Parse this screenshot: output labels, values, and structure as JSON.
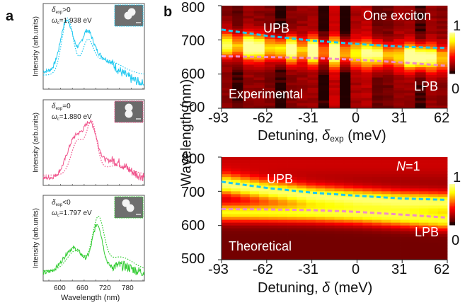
{
  "panel_a": {
    "letter": "a",
    "ylabel": "Intensity (arb.units)",
    "xlabel": "Wavelength (nm)",
    "xticks": [
      "600",
      "660",
      "720",
      "780"
    ],
    "spectra": [
      {
        "delta_label_main": "δ",
        "delta_sub": "exp",
        "delta_rel": ">0",
        "omega_main": "ω",
        "omega_sub": "c",
        "omega_val": "=1.938 eV",
        "color": "#1ec8f0",
        "peaks_nm": [
          630,
          675
        ]
      },
      {
        "delta_label_main": "δ",
        "delta_sub": "exp",
        "delta_rel": "=0",
        "omega_main": "ω",
        "omega_sub": "c",
        "omega_val": "=1.880 eV",
        "color": "#f0548c",
        "peaks_nm": [
          650,
          690
        ]
      },
      {
        "delta_label_main": "δ",
        "delta_sub": "exp",
        "delta_rel": "<0",
        "omega_main": "ω",
        "omega_sub": "c",
        "omega_val": "=1.797 eV",
        "color": "#33cc33",
        "peaks_nm": [
          645,
          705
        ]
      }
    ]
  },
  "panel_b": {
    "letter": "b",
    "ylabel": "Wavelength (nm)",
    "colorbar": {
      "max_label": "1",
      "min_label": "0"
    }
  },
  "chart_data": [
    {
      "type": "heatmap",
      "title": "One exciton",
      "annotation": "Experimental",
      "xlabel_main": "Detuning, ",
      "xlabel_symbol": "δ",
      "xlabel_sub": "exp",
      "xlabel_unit": " (meV)",
      "ylabel": "Wavelength (nm)",
      "xticks": [
        "-93",
        "-62",
        "-31",
        "0",
        "31",
        "62"
      ],
      "yticks": [
        "800",
        "700",
        "600",
        "500"
      ],
      "xlim": [
        -93,
        62
      ],
      "ylim": [
        500,
        800
      ],
      "colorbar_range": [
        0,
        1
      ],
      "colormap": "hot",
      "series": [
        {
          "name": "UPB",
          "color": "#1ec8f0",
          "x": [
            -93,
            -62,
            -31,
            0,
            31,
            62
          ],
          "y": [
            730,
            712,
            698,
            688,
            680,
            676
          ]
        },
        {
          "name": "LPB",
          "color": "#f08cc8",
          "x": [
            -93,
            -62,
            -31,
            0,
            31,
            62
          ],
          "y": [
            652,
            650,
            647,
            642,
            634,
            624
          ]
        }
      ]
    },
    {
      "type": "heatmap",
      "title": "N=1",
      "title_italic": "N",
      "title_rest": "=1",
      "annotation": "Theoretical",
      "xlabel_main": "Detuning, ",
      "xlabel_symbol": "δ",
      "xlabel_sub": "",
      "xlabel_unit": " (meV)",
      "ylabel": "Wavelength (nm)",
      "xticks": [
        "-93",
        "-62",
        "-31",
        "0",
        "31",
        "62"
      ],
      "yticks": [
        "800",
        "700",
        "600",
        "500"
      ],
      "xlim": [
        -93,
        62
      ],
      "ylim": [
        500,
        800
      ],
      "colorbar_range": [
        0,
        1
      ],
      "colormap": "hot",
      "series": [
        {
          "name": "UPB",
          "color": "#1ec8f0",
          "x": [
            -93,
            -62,
            -31,
            0,
            31,
            62
          ],
          "y": [
            728,
            710,
            696,
            687,
            679,
            675
          ]
        },
        {
          "name": "LPB",
          "color": "#f08cc8",
          "x": [
            -93,
            -62,
            -31,
            0,
            31,
            62
          ],
          "y": [
            648,
            647,
            645,
            640,
            632,
            623
          ]
        }
      ]
    }
  ]
}
